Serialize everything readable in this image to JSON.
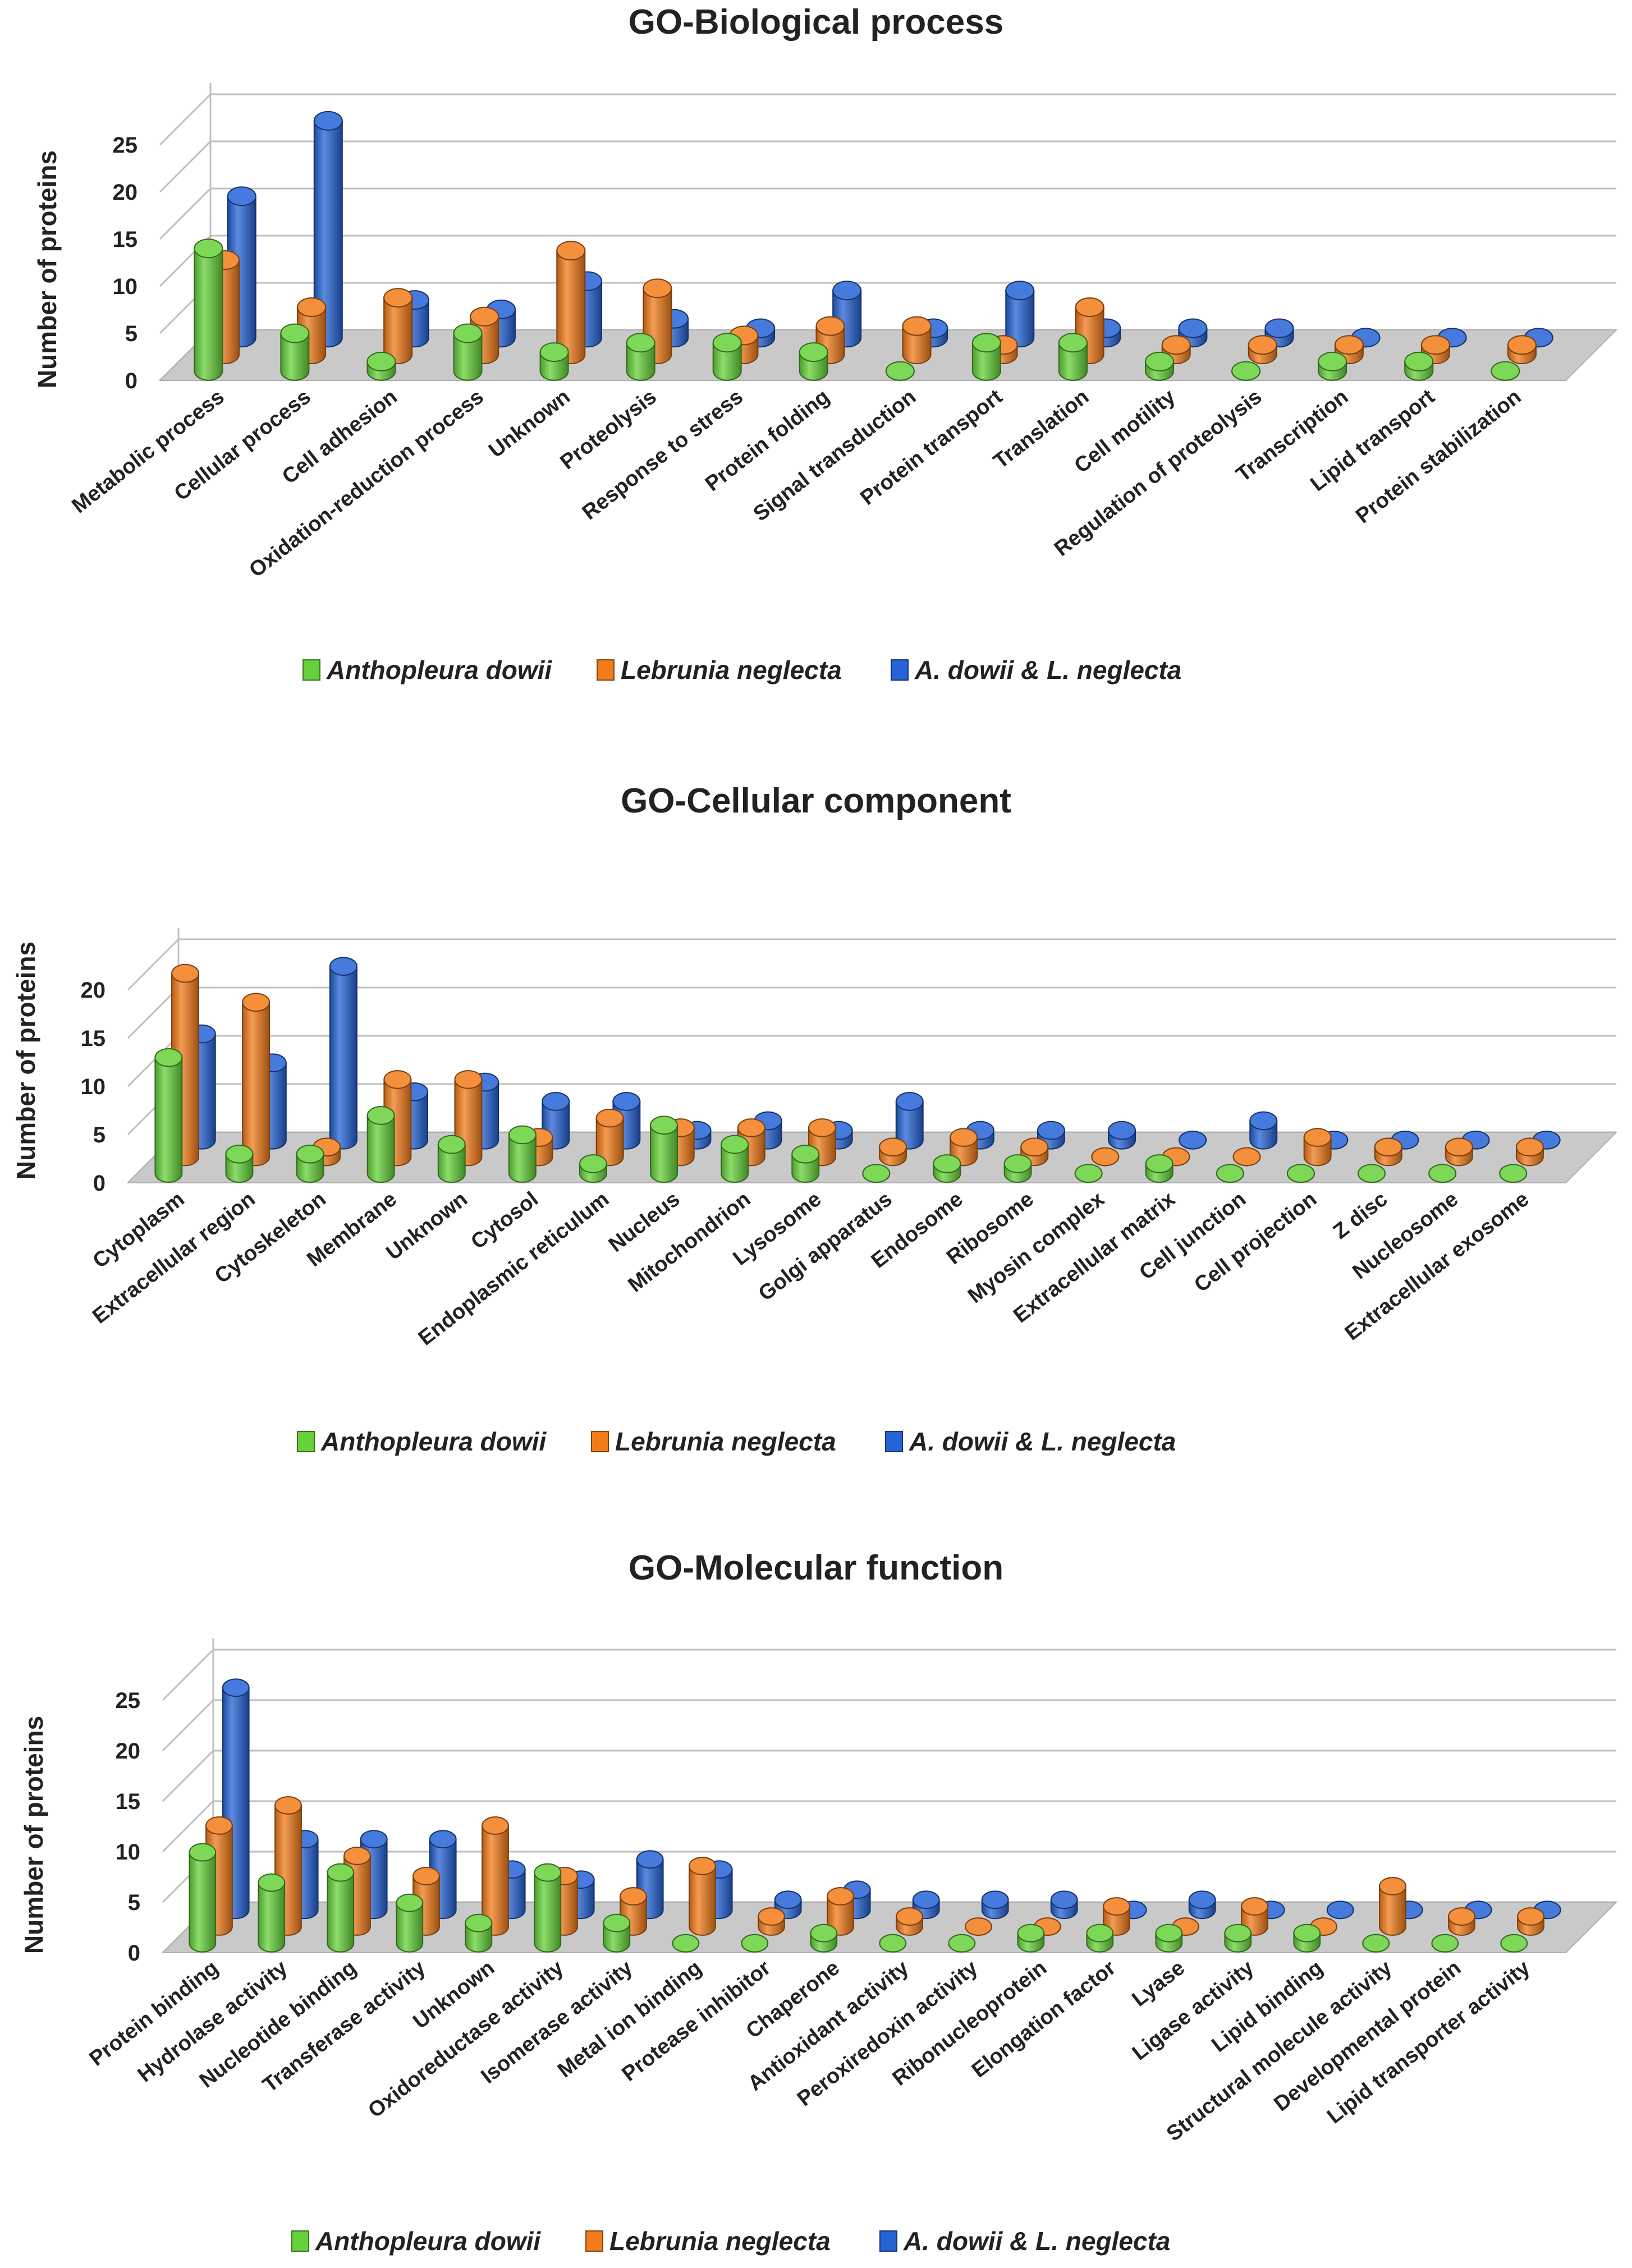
{
  "colors": {
    "green": "#66d13a",
    "orange": "#f27b1a",
    "blue": "#2563d6",
    "floor": "#c9c9c9",
    "grid": "#bfbfbf",
    "text": "#222222"
  },
  "chart_data": [
    {
      "type": "bar",
      "title": "GO-Biological process",
      "ylabel": "Number of proteins",
      "xlabel": "",
      "ylim": [
        0,
        25
      ],
      "yticks": [
        0,
        5,
        10,
        15,
        20,
        25
      ],
      "categories": [
        "Metabolic process",
        "Cellular process",
        "Cell adhesion",
        "Oxidation-reduction process",
        "Unknown",
        "Proteolysis",
        "Response to stress",
        "Protein folding",
        "Signal transduction",
        "Protein transport",
        "Translation",
        "Cell motility",
        "Regulation of proteolysis",
        "Transcription",
        "Lipid transport",
        "Protein stabilization"
      ],
      "series": [
        {
          "name": "Anthopleura dowii",
          "color_key": "green",
          "values": [
            13,
            4,
            1,
            4,
            2,
            3,
            3,
            2,
            0,
            3,
            3,
            1,
            0,
            1,
            1,
            0
          ]
        },
        {
          "name": "Lebrunia neglecta",
          "color_key": "orange",
          "values": [
            10,
            5,
            6,
            4,
            11,
            7,
            2,
            3,
            3,
            1,
            5,
            1,
            1,
            1,
            1,
            1
          ]
        },
        {
          "name": "A. dowii & L. neglecta",
          "color_key": "blue",
          "values": [
            15,
            23,
            4,
            3,
            6,
            2,
            1,
            5,
            1,
            5,
            1,
            1,
            1,
            0,
            0,
            0
          ]
        }
      ],
      "legend": [
        {
          "label": "Anthopleura dowii",
          "color_key": "green"
        },
        {
          "label": "Lebrunia neglecta",
          "color_key": "orange"
        },
        {
          "label": "A. dowii & L. neglecta",
          "color_key": "blue"
        }
      ],
      "legend_position": "bottom"
    },
    {
      "type": "bar",
      "title": "GO-Cellular component",
      "ylabel": "Number of proteins",
      "xlabel": "",
      "ylim": [
        0,
        20
      ],
      "yticks": [
        0,
        5,
        10,
        15,
        20
      ],
      "categories": [
        "Cytoplasm",
        "Extracellular region",
        "Cytoskeleton",
        "Membrane",
        "Unknown",
        "Cytosol",
        "Endoplasmic reticulum",
        "Nucleus",
        "Mitochondrion",
        "Lysosome",
        "Golgi apparatus",
        "Endosome",
        "Ribosome",
        "Myosin complex",
        "Extracellular matrix",
        "Cell junction",
        "Cell projection",
        "Z disc",
        "Nucleosome",
        "Extracellular exosome"
      ],
      "series": [
        {
          "name": "Anthopleura dowii",
          "color_key": "green",
          "values": [
            12,
            2,
            2,
            6,
            3,
            4,
            1,
            5,
            3,
            2,
            0,
            1,
            1,
            0,
            1,
            0,
            0,
            0,
            0,
            0
          ]
        },
        {
          "name": "Lebrunia neglecta",
          "color_key": "orange",
          "values": [
            19,
            16,
            1,
            8,
            8,
            2,
            4,
            3,
            3,
            3,
            1,
            2,
            1,
            0,
            0,
            0,
            2,
            1,
            1,
            1
          ]
        },
        {
          "name": "A. dowii & L. neglecta",
          "color_key": "blue",
          "values": [
            11,
            8,
            18,
            5,
            6,
            4,
            4,
            1,
            2,
            1,
            4,
            1,
            1,
            1,
            0,
            2,
            0,
            0,
            0,
            0
          ]
        }
      ],
      "legend": [
        {
          "label": "Anthopleura dowii",
          "color_key": "green"
        },
        {
          "label": "Lebrunia neglecta",
          "color_key": "orange"
        },
        {
          "label": "A. dowii & L. neglecta",
          "color_key": "blue"
        }
      ],
      "legend_position": "bottom"
    },
    {
      "type": "bar",
      "title": "GO-Molecular function",
      "ylabel": "Number of proteins",
      "xlabel": "",
      "ylim": [
        0,
        25
      ],
      "yticks": [
        0,
        5,
        10,
        15,
        20,
        25
      ],
      "categories": [
        "Protein binding",
        "Hydrolase activity",
        "Nucleotide binding",
        "Transferase activity",
        "Unknown",
        "Oxidoreductase activity",
        "Isomerase activity",
        "Metal ion binding",
        "Protease inhibitor",
        "Chaperone",
        "Antioxidant activity",
        "Peroxiredoxin activity",
        "Ribonucleoprotein",
        "Elongation factor",
        "Lyase",
        "Ligase activity",
        "Lipid binding",
        "Structural molecule activity",
        "Developmental protein",
        "Lipid transporter activity"
      ],
      "series": [
        {
          "name": "Anthopleura dowii",
          "color_key": "green",
          "values": [
            9,
            6,
            7,
            4,
            2,
            7,
            2,
            0,
            0,
            1,
            0,
            0,
            1,
            1,
            1,
            1,
            1,
            0,
            0,
            0
          ]
        },
        {
          "name": "Lebrunia neglecta",
          "color_key": "orange",
          "values": [
            10,
            12,
            7,
            5,
            10,
            5,
            3,
            6,
            1,
            3,
            1,
            0,
            0,
            2,
            0,
            2,
            0,
            4,
            1,
            1
          ]
        },
        {
          "name": "A. dowii & L. neglecta",
          "color_key": "blue",
          "values": [
            22,
            7,
            7,
            7,
            4,
            3,
            5,
            4,
            1,
            2,
            1,
            1,
            1,
            0,
            1,
            0,
            0,
            0,
            0,
            0
          ]
        }
      ],
      "legend": [
        {
          "label": "Anthopleura dowii",
          "color_key": "green"
        },
        {
          "label": "Lebrunia neglecta",
          "color_key": "orange"
        },
        {
          "label": "A. dowii & L. neglecta",
          "color_key": "blue"
        }
      ],
      "legend_position": "bottom"
    }
  ]
}
